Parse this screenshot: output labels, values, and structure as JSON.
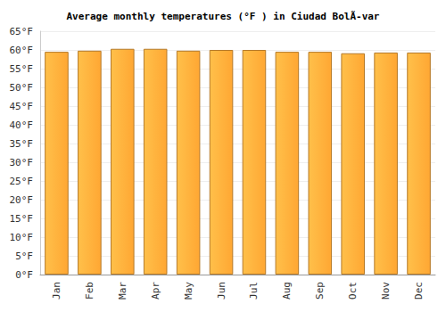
{
  "chart_data": {
    "type": "bar",
    "title": "Average monthly temperatures (°F ) in Ciudad BolÃ-var",
    "categories": [
      "Jan",
      "Feb",
      "Mar",
      "Apr",
      "May",
      "Jun",
      "Jul",
      "Aug",
      "Sep",
      "Oct",
      "Nov",
      "Dec"
    ],
    "values": [
      59.5,
      59.8,
      60.3,
      60.3,
      59.8,
      60.0,
      60.0,
      59.5,
      59.5,
      59.1,
      59.3,
      59.3
    ],
    "color": "#ffa733",
    "ylim": [
      0,
      65
    ],
    "yticks": [
      {
        "value": 0,
        "label": "0°F"
      },
      {
        "value": 5,
        "label": "5°F"
      },
      {
        "value": 10,
        "label": "10°F"
      },
      {
        "value": 15,
        "label": "15°F"
      },
      {
        "value": 20,
        "label": "20°F"
      },
      {
        "value": 25,
        "label": "25°F"
      },
      {
        "value": 30,
        "label": "30°F"
      },
      {
        "value": 35,
        "label": "35°F"
      },
      {
        "value": 40,
        "label": "40°F"
      },
      {
        "value": 45,
        "label": "45°F"
      },
      {
        "value": 50,
        "label": "50°F"
      },
      {
        "value": 55,
        "label": "55°F"
      },
      {
        "value": 60,
        "label": "60°F"
      },
      {
        "value": 65,
        "label": "65°F"
      }
    ],
    "grid": true
  }
}
